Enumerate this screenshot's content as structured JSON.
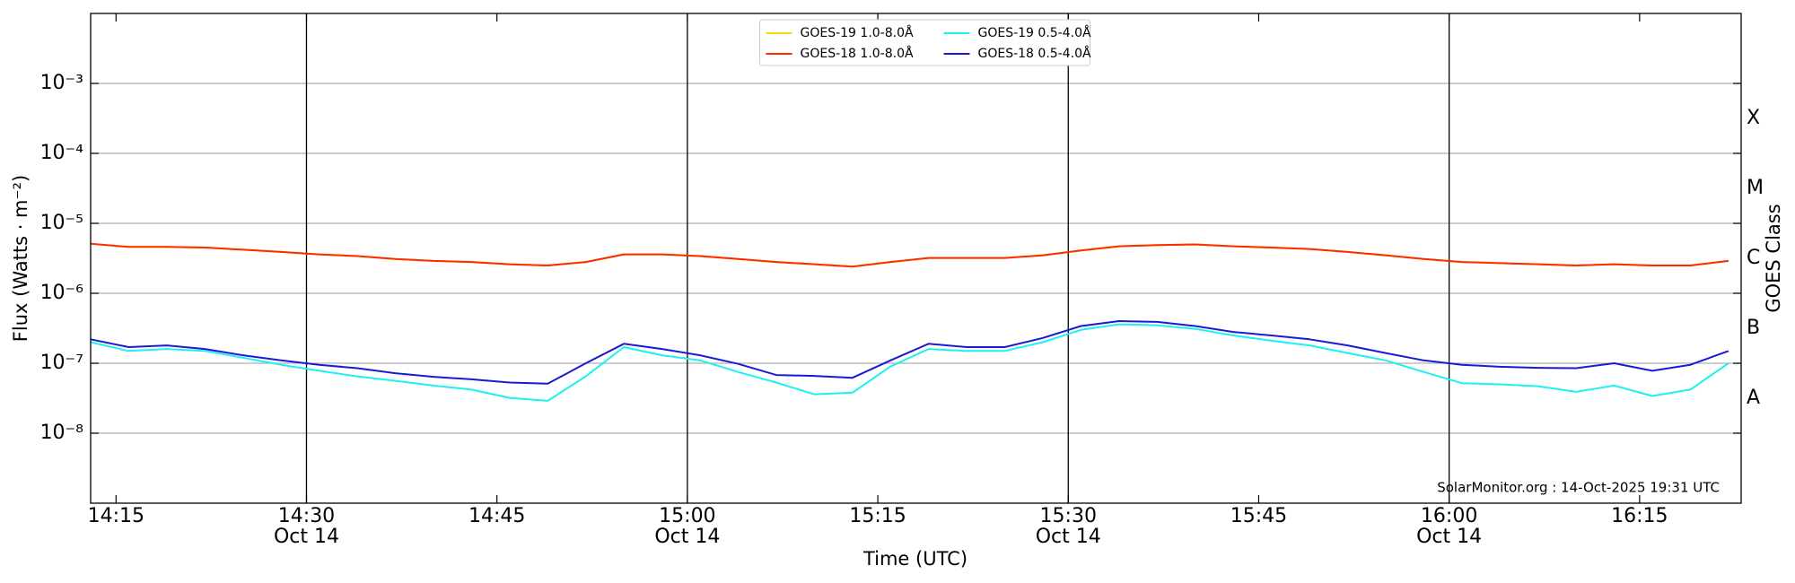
{
  "chart_data": {
    "type": "line",
    "xlabel": "Time (UTC)",
    "ylabel": "Flux (Watts · m⁻²)",
    "y2label": "GOES Class",
    "annotation": "SolarMonitor.org : 14-Oct-2025 19:31 UTC",
    "log_y": true,
    "grid": true,
    "legend_loc": "upper center",
    "xlim": [
      "14:13",
      "16:23"
    ],
    "xticks": [
      {
        "value": "14:15",
        "label": "14:15"
      },
      {
        "value": "14:30",
        "label": "14:30",
        "date": "Oct 14"
      },
      {
        "value": "14:45",
        "label": "14:45"
      },
      {
        "value": "15:00",
        "label": "15:00",
        "date": "Oct 14"
      },
      {
        "value": "15:15",
        "label": "15:15"
      },
      {
        "value": "15:30",
        "label": "15:30",
        "date": "Oct 14"
      },
      {
        "value": "15:45",
        "label": "15:45"
      },
      {
        "value": "16:00",
        "label": "16:00",
        "date": "Oct 14"
      },
      {
        "value": "16:15",
        "label": "16:15"
      }
    ],
    "ylim": [
      1e-09,
      0.01
    ],
    "yticks": [
      {
        "value": 1e-08,
        "label": "10⁻⁸"
      },
      {
        "value": 1e-07,
        "label": "10⁻⁷"
      },
      {
        "value": 1e-06,
        "label": "10⁻⁶"
      },
      {
        "value": 1e-05,
        "label": "10⁻⁵"
      },
      {
        "value": 0.0001,
        "label": "10⁻⁴"
      },
      {
        "value": 0.001,
        "label": "10⁻³"
      }
    ],
    "y2lim": [
      1e-09,
      0.01
    ],
    "y2ticks": [
      {
        "value": 1e-08,
        "label": "A"
      },
      {
        "value": 1e-07,
        "label": "B"
      },
      {
        "value": 1e-06,
        "label": "C"
      },
      {
        "value": 1e-05,
        "label": "M"
      },
      {
        "value": 0.0001,
        "label": "X"
      }
    ],
    "x": [
      "14:13",
      "14:16",
      "14:19",
      "14:22",
      "14:25",
      "14:28",
      "14:31",
      "14:34",
      "14:37",
      "14:40",
      "14:43",
      "14:46",
      "14:49",
      "14:52",
      "14:55",
      "14:58",
      "15:01",
      "15:04",
      "15:07",
      "15:10",
      "15:13",
      "15:16",
      "15:19",
      "15:22",
      "15:25",
      "15:28",
      "15:31",
      "15:34",
      "15:37",
      "15:40",
      "15:43",
      "15:46",
      "15:49",
      "15:52",
      "15:55",
      "15:58",
      "16:01",
      "16:04",
      "16:07",
      "16:10",
      "16:13",
      "16:16",
      "16:19",
      "16:22"
    ],
    "series": [
      {
        "name": "GOES-19 1.0-8.0Å",
        "color": "#ffd700",
        "values": [
          5.1e-06,
          4.6e-06,
          4.6e-06,
          4.5e-06,
          4.2e-06,
          3.9e-06,
          3.6e-06,
          3.4e-06,
          3.1e-06,
          2.9e-06,
          2.8e-06,
          2.6e-06,
          2.5e-06,
          2.8e-06,
          3.6e-06,
          3.6e-06,
          3.4e-06,
          3.1e-06,
          2.8e-06,
          2.6e-06,
          2.4e-06,
          2.8e-06,
          3.2e-06,
          3.2e-06,
          3.2e-06,
          3.5e-06,
          4.1e-06,
          4.7e-06,
          4.9e-06,
          5e-06,
          4.7e-06,
          4.5e-06,
          4.3e-06,
          3.9e-06,
          3.5e-06,
          3.1e-06,
          2.8e-06,
          2.7e-06,
          2.6e-06,
          2.5e-06,
          2.6e-06,
          2.5e-06,
          2.5e-06,
          2.9e-06
        ]
      },
      {
        "name": "GOES-18 1.0-8.0Å",
        "color": "#ff2a00",
        "values": [
          5.1e-06,
          4.6e-06,
          4.6e-06,
          4.5e-06,
          4.2e-06,
          3.9e-06,
          3.6e-06,
          3.4e-06,
          3.1e-06,
          2.9e-06,
          2.8e-06,
          2.6e-06,
          2.5e-06,
          2.8e-06,
          3.6e-06,
          3.6e-06,
          3.4e-06,
          3.1e-06,
          2.8e-06,
          2.6e-06,
          2.4e-06,
          2.8e-06,
          3.2e-06,
          3.2e-06,
          3.2e-06,
          3.5e-06,
          4.1e-06,
          4.7e-06,
          4.9e-06,
          5e-06,
          4.7e-06,
          4.5e-06,
          4.3e-06,
          3.9e-06,
          3.5e-06,
          3.1e-06,
          2.8e-06,
          2.7e-06,
          2.6e-06,
          2.5e-06,
          2.6e-06,
          2.5e-06,
          2.5e-06,
          2.9e-06
        ]
      },
      {
        "name": "GOES-19 0.5-4.0Å",
        "color": "#1ef0f0",
        "values": [
          2e-07,
          1.5e-07,
          1.6e-07,
          1.5e-07,
          1.2e-07,
          9.5e-08,
          7.8e-08,
          6.5e-08,
          5.6e-08,
          4.8e-08,
          4.2e-08,
          3.2e-08,
          2.9e-08,
          6.5e-08,
          1.7e-07,
          1.3e-07,
          1.1e-07,
          7.5e-08,
          5.3e-08,
          3.6e-08,
          3.8e-08,
          9e-08,
          1.6e-07,
          1.5e-07,
          1.5e-07,
          2e-07,
          3e-07,
          3.6e-07,
          3.5e-07,
          3.1e-07,
          2.5e-07,
          2.1e-07,
          1.8e-07,
          1.4e-07,
          1.1e-07,
          7.5e-08,
          5.2e-08,
          5e-08,
          4.7e-08,
          3.9e-08,
          4.8e-08,
          3.4e-08,
          4.2e-08,
          1e-07
        ]
      },
      {
        "name": "GOES-18 0.5-4.0Å",
        "color": "#1a1ad6",
        "values": [
          2.2e-07,
          1.7e-07,
          1.8e-07,
          1.6e-07,
          1.3e-07,
          1.1e-07,
          9.5e-08,
          8.5e-08,
          7.2e-08,
          6.4e-08,
          5.9e-08,
          5.3e-08,
          5.1e-08,
          1e-07,
          1.9e-07,
          1.6e-07,
          1.3e-07,
          9.8e-08,
          6.8e-08,
          6.6e-08,
          6.2e-08,
          1.1e-07,
          1.9e-07,
          1.7e-07,
          1.7e-07,
          2.3e-07,
          3.4e-07,
          4e-07,
          3.9e-07,
          3.4e-07,
          2.8e-07,
          2.5e-07,
          2.2e-07,
          1.8e-07,
          1.4e-07,
          1.1e-07,
          9.5e-08,
          8.9e-08,
          8.6e-08,
          8.5e-08,
          1e-07,
          7.8e-08,
          9.5e-08,
          1.5e-07
        ]
      }
    ]
  }
}
